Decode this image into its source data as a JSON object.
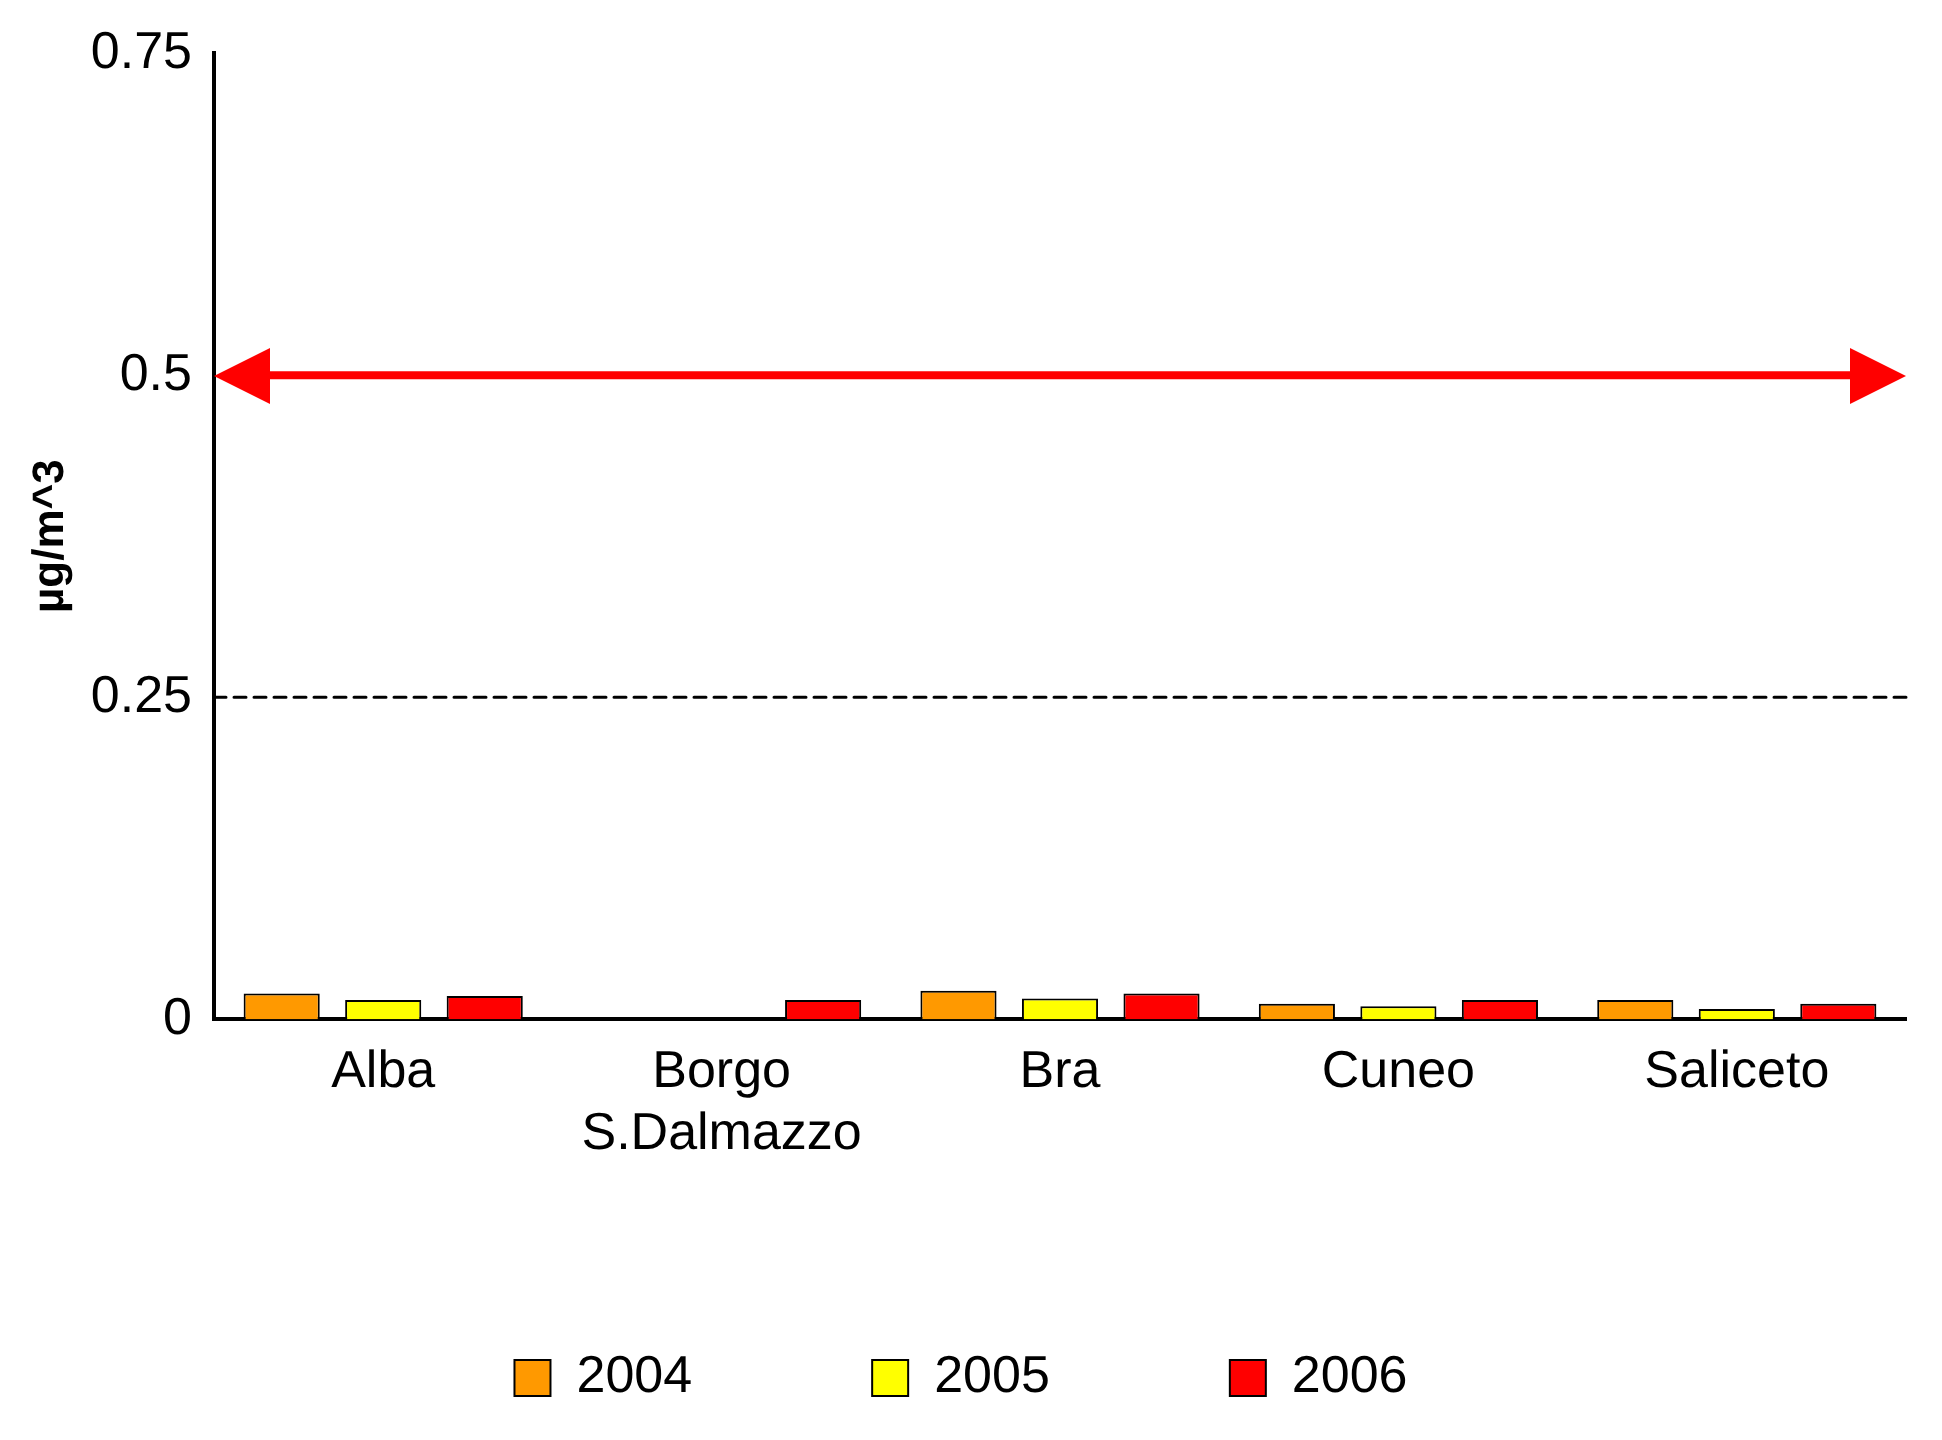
{
  "chart_data": {
    "type": "bar",
    "ylabel": "µg/m^3",
    "categories": [
      "Alba",
      "Borgo S.Dalmazzo",
      "Bra",
      "Cuneo",
      "Saliceto"
    ],
    "series": [
      {
        "name": "2004",
        "color": "#ff9900",
        "values": [
          0.02,
          null,
          0.022,
          0.012,
          0.015
        ]
      },
      {
        "name": "2005",
        "color": "#ffff00",
        "values": [
          0.015,
          null,
          0.016,
          0.01,
          0.008
        ]
      },
      {
        "name": "2006",
        "color": "#ff0000",
        "values": [
          0.018,
          0.015,
          0.02,
          0.015,
          0.012
        ]
      }
    ],
    "ylim": [
      0,
      0.75
    ],
    "yticks": [
      0,
      0.25,
      0.5,
      0.75
    ],
    "grid": false,
    "legend": "bottom",
    "ref_lines": [
      {
        "axis": "y",
        "value": 0.5,
        "color": "#ff0000",
        "line_style": "solid"
      },
      {
        "axis": "y",
        "value": 0.25,
        "color": "#000000",
        "line_style": "dashed"
      }
    ]
  }
}
